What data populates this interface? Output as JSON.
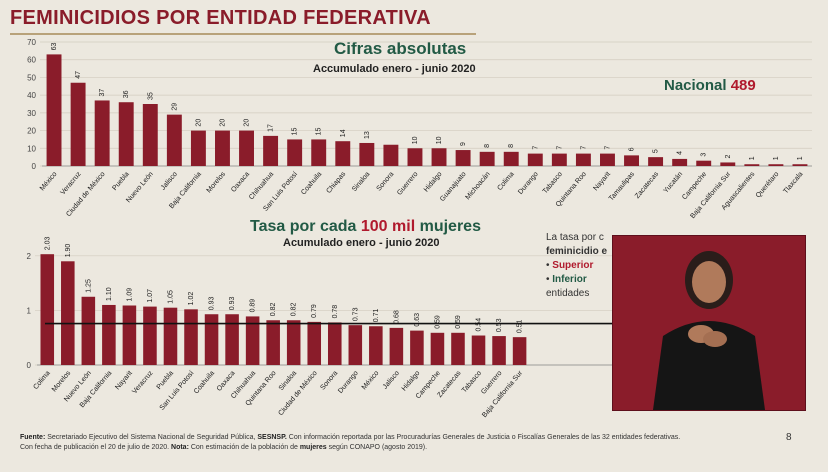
{
  "header": {
    "title": "FEMINICIDIOS POR ENTIDAD FEDERATIVA"
  },
  "chart_data": [
    {
      "type": "bar",
      "title": "Cifras absolutas",
      "subtitle": "Accumulado enero - junio 2020",
      "ylim": [
        0,
        70
      ],
      "yticks": [
        0,
        10,
        20,
        30,
        40,
        50,
        60,
        70
      ],
      "grid": true,
      "categories": [
        "México",
        "Veracruz",
        "Ciudad de México",
        "Puebla",
        "Nuevo León",
        "Jalisco",
        "Baja California",
        "Morelos",
        "Oaxaca",
        "Chihuahua",
        "San Luis Potosí",
        "Coahuila",
        "Chiapas",
        "Sinaloa",
        "Sonora",
        "Guerrero",
        "Hidalgo",
        "Guanajuato",
        "Michoacán",
        "Colima",
        "Durango",
        "Tabasco",
        "Quintana Roo",
        "Nayarit",
        "Tamaulipas",
        "Zacatecas",
        "Yucatán",
        "Campeche",
        "Baja California Sur",
        "Aguascalientes",
        "Querétaro",
        "Tlaxcala"
      ],
      "values": [
        63,
        47,
        37,
        36,
        35,
        29,
        20,
        20,
        20,
        17,
        15,
        15,
        14,
        13,
        12,
        10,
        10,
        9,
        8,
        8,
        7,
        7,
        7,
        7,
        6,
        5,
        4,
        3,
        2,
        1,
        1,
        1
      ],
      "data_labels": [
        "63",
        "47",
        "37",
        "36",
        "35",
        "29",
        "20",
        "20",
        "20",
        "17",
        "15",
        "15",
        "14",
        "13",
        "",
        "10",
        "10",
        "9",
        "8",
        "8",
        "7",
        "7",
        "7",
        "7",
        "6",
        "5",
        "4",
        "3",
        "2",
        "1",
        "1",
        "1"
      ],
      "annotation": {
        "label": "Nacional",
        "value": "489"
      }
    },
    {
      "type": "bar",
      "title": "Tasa por cada 100 mil mujeres",
      "title_prefix": "Tasa por cada",
      "title_num": "100 mil",
      "title_suffix": "mujeres",
      "subtitle": "Acumulado enero - junio 2020",
      "ylim": [
        0,
        2.4
      ],
      "yticks": [
        0,
        1,
        2
      ],
      "grid": true,
      "reference_line": 0.76,
      "categories": [
        "Colima",
        "Morelos",
        "Nuevo León",
        "Baja California",
        "Nayarit",
        "Veracruz",
        "Puebla",
        "San Luis Potosí",
        "Coahuila",
        "Oaxaca",
        "Chihuahua",
        "Quintana Roo",
        "Sinaloa",
        "Ciudad de México",
        "Sonora",
        "Durango",
        "México",
        "Jalisco",
        "Hidalgo",
        "Campeche",
        "Zacatecas",
        "Tabasco",
        "Guerrero",
        "Baja California Sur"
      ],
      "values": [
        2.03,
        1.9,
        1.25,
        1.1,
        1.09,
        1.07,
        1.05,
        1.02,
        0.93,
        0.93,
        0.89,
        0.82,
        0.82,
        0.79,
        0.78,
        0.73,
        0.71,
        0.68,
        0.63,
        0.59,
        0.59,
        0.54,
        0.53,
        0.51
      ],
      "data_labels": [
        "2.03",
        "1.90",
        "1.25",
        "1.10",
        "1.09",
        "1.07",
        "1.05",
        "1.02",
        "0.93",
        "0.93",
        "0.89",
        "0.82",
        "0.82",
        "0.79",
        "0.78",
        "0.73",
        "0.71",
        "0.68",
        "0.63",
        "0.59",
        "0.59",
        "0.54",
        "0.53",
        "0.51"
      ],
      "legend": {
        "line1": "La tasa por c",
        "line2": "feminicidio e",
        "superior": "Superior",
        "inferior": "Inferior",
        "entidades": "entidades"
      }
    }
  ],
  "footer": {
    "fuente_label": "Fuente:",
    "fuente_text": "Secretariado Ejecutivo del Sistema Nacional de Seguridad Pública,",
    "sesnsp": "SESNSP.",
    "fuente_rest": "Con información reportada por las Procuradurías Generales de Justicia o Fiscalías Generales de las 32 entidades federativas.",
    "fecha": "Con fecha de publicación el 20 de julio de 2020.",
    "nota_label": "Nota:",
    "nota_text": "Con estimación de la población de",
    "mujeres": "mujeres",
    "nota_rest": "según CONAPO (agosto 2019).",
    "page": "8"
  },
  "colors": {
    "bar": "#8a1c2a",
    "accent_green": "#225a45",
    "accent_red": "#b01a2d"
  }
}
